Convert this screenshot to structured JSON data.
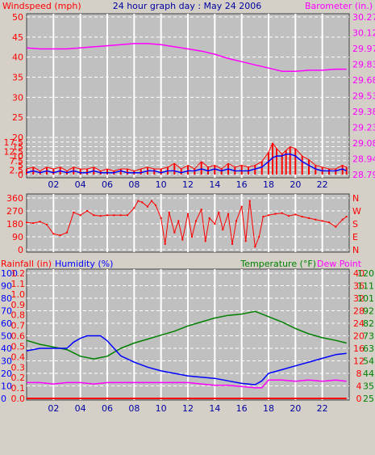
{
  "header": {
    "windspeed_label": "Windspeed (mph)",
    "title": "24 hour graph day : May 24 2006",
    "barometer_label": "Barometer (in.)"
  },
  "lower_header": {
    "rainfall_label": "Rainfall (in)",
    "humidity_label": "Humidity (%)",
    "temperature_label": "Temperature (°F)",
    "dewpoint_label": "Dew Point"
  },
  "colors": {
    "background": "#d4d0c8",
    "plot_bg": "#c0c0c0",
    "wind_gust": "#ff0000",
    "wind_avg": "#0000ff",
    "barometer": "#ff00ff",
    "direction": "#ff0000",
    "humidity": "#0000ff",
    "temperature": "#008000",
    "dewpoint": "#ff00ff",
    "rainfall": "#ff0000"
  },
  "chart_data": [
    {
      "type": "line",
      "name": "wind-barometer",
      "title": "24 hour graph day : May 24 2006",
      "xlabel": "",
      "ylabel": "Windspeed (mph)",
      "y2label": "Barometer (in.)",
      "x_ticks": [
        "02",
        "04",
        "06",
        "08",
        "10",
        "12",
        "14",
        "16",
        "18",
        "20",
        "22"
      ],
      "xlim": [
        0,
        24
      ],
      "ylim": [
        0,
        50
      ],
      "y_ticks": [
        "0",
        "2.5",
        "5",
        "7.5",
        "10",
        "12.5",
        "15",
        "17.5",
        "20",
        "25",
        "30",
        "35",
        "40",
        "45",
        "50"
      ],
      "y2_ticks": [
        "28.79",
        "28.94",
        "29.08",
        "29.23",
        "29.38",
        "29.53",
        "29.68",
        "29.83",
        "29.97",
        "30.12",
        "30.27"
      ],
      "y2lim": [
        28.79,
        30.27
      ],
      "grid": true,
      "series": [
        {
          "name": "Barometer",
          "axis": "right",
          "x": [
            0,
            1,
            2,
            3,
            4,
            5,
            6,
            7,
            8,
            9,
            10,
            11,
            12,
            13,
            14,
            15,
            16,
            17,
            18,
            19,
            20,
            21,
            22,
            23,
            23.8
          ],
          "values": [
            29.98,
            29.97,
            29.97,
            29.97,
            29.98,
            29.99,
            30.0,
            30.01,
            30.02,
            30.02,
            30.01,
            29.99,
            29.97,
            29.95,
            29.92,
            29.88,
            29.85,
            29.82,
            29.79,
            29.76,
            29.76,
            29.77,
            29.77,
            29.78,
            29.78
          ]
        },
        {
          "name": "Gust",
          "axis": "left",
          "x": [
            0,
            0.5,
            1,
            1.5,
            2,
            2.5,
            3,
            3.5,
            4,
            4.5,
            5,
            5.5,
            6,
            6.5,
            7,
            7.5,
            8,
            8.5,
            9,
            9.5,
            10,
            10.5,
            11,
            11.5,
            12,
            12.5,
            13,
            13.5,
            14,
            14.5,
            15,
            15.5,
            16,
            16.5,
            17,
            17.5,
            18,
            18.3,
            18.6,
            19,
            19.3,
            19.6,
            20,
            20.5,
            21,
            21.5,
            22,
            22.5,
            23,
            23.5,
            23.8
          ],
          "values": [
            3,
            4,
            2,
            4,
            3,
            4,
            2,
            4,
            3,
            3,
            4,
            2,
            3,
            2,
            3,
            3,
            2,
            3,
            4,
            3,
            3,
            4,
            6,
            3,
            5,
            3,
            7,
            4,
            5,
            3,
            6,
            4,
            5,
            4,
            5,
            7,
            12,
            17,
            14,
            11,
            13,
            15,
            14,
            10,
            8,
            5,
            4,
            3,
            3,
            5,
            4
          ]
        },
        {
          "name": "Average",
          "axis": "left",
          "x": [
            0,
            0.5,
            1,
            1.5,
            2,
            2.5,
            3,
            3.5,
            4,
            4.5,
            5,
            5.5,
            6,
            6.5,
            7,
            7.5,
            8,
            8.5,
            9,
            9.5,
            10,
            10.5,
            11,
            11.5,
            12,
            12.5,
            13,
            13.5,
            14,
            14.5,
            15,
            15.5,
            16,
            16.5,
            17,
            17.5,
            18,
            18.3,
            18.6,
            19,
            19.3,
            19.6,
            20,
            20.5,
            21,
            21.5,
            22,
            22.5,
            23,
            23.5,
            23.8
          ],
          "values": [
            1,
            2,
            1,
            2,
            1,
            2,
            1,
            2,
            1,
            1,
            2,
            1,
            1,
            1,
            2,
            1,
            1,
            1,
            2,
            2,
            1,
            2,
            2,
            1,
            2,
            2,
            3,
            2,
            3,
            2,
            3,
            2,
            2,
            2,
            3,
            4,
            7,
            9,
            10,
            10,
            11,
            11,
            10,
            7,
            5,
            3,
            2,
            2,
            2,
            3,
            2
          ]
        }
      ]
    },
    {
      "type": "scatter",
      "name": "wind-direction",
      "xlabel": "",
      "ylabel": "",
      "x_ticks": [
        "02",
        "04",
        "06",
        "08",
        "10",
        "12",
        "14",
        "16",
        "18",
        "20",
        "22"
      ],
      "xlim": [
        0,
        24
      ],
      "ylim": [
        0,
        360
      ],
      "y_ticks": [
        "0",
        "90",
        "180",
        "270",
        "360"
      ],
      "y2_ticks": [
        "N",
        "E",
        "S",
        "W",
        "N"
      ],
      "grid": true,
      "series": [
        {
          "name": "Direction",
          "x": [
            0,
            0.5,
            1,
            1.5,
            2,
            2.5,
            3,
            3.5,
            4,
            4.5,
            5,
            5.5,
            6,
            6.5,
            7,
            7.5,
            8,
            8.3,
            8.6,
            9,
            9.3,
            9.6,
            10,
            10.3,
            10.6,
            11,
            11.3,
            11.6,
            12,
            12.3,
            12.6,
            13,
            13.3,
            13.6,
            14,
            14.3,
            14.6,
            15,
            15.3,
            15.6,
            16,
            16.3,
            16.6,
            17,
            17.3,
            17.6,
            18,
            18.5,
            19,
            19.5,
            20,
            20.5,
            21,
            21.5,
            22,
            22.5,
            23,
            23.5,
            23.8
          ],
          "values": [
            190,
            185,
            195,
            175,
            110,
            100,
            120,
            260,
            240,
            270,
            240,
            235,
            240,
            240,
            240,
            240,
            290,
            340,
            330,
            300,
            340,
            310,
            220,
            40,
            260,
            120,
            200,
            70,
            250,
            90,
            200,
            280,
            60,
            220,
            180,
            260,
            140,
            250,
            40,
            200,
            300,
            60,
            340,
            20,
            90,
            230,
            240,
            250,
            255,
            235,
            245,
            230,
            220,
            210,
            200,
            190,
            160,
            210,
            230
          ]
        }
      ]
    },
    {
      "type": "line",
      "name": "humidity-temperature",
      "xlabel": "",
      "ylabel": "Rainfall (in)",
      "x_ticks": [
        "02",
        "04",
        "06",
        "08",
        "10",
        "12",
        "14",
        "16",
        "18",
        "20",
        "22"
      ],
      "xlim": [
        0,
        24
      ],
      "rainfall_ticks": [
        "0.0",
        "0.1",
        "0.2",
        "0.3",
        "0.4",
        "0.5",
        "0.6",
        "0.7",
        "0.8",
        "0.9",
        "1.0",
        "1.1",
        "1.2"
      ],
      "humidity_ticks": [
        "0",
        "10",
        "20",
        "30",
        "40",
        "50",
        "60",
        "70",
        "80",
        "90",
        "100"
      ],
      "dewpoint_ticks": [
        "0",
        "4",
        "8",
        "12",
        "16",
        "20",
        "24",
        "28",
        "32",
        "36",
        "40"
      ],
      "temperature_ticks": [
        "25",
        "35",
        "44",
        "54",
        "63",
        "73",
        "82",
        "92",
        "101",
        "111",
        "120"
      ],
      "humidity_lim": [
        0,
        100
      ],
      "temperature_lim": [
        25,
        120
      ],
      "grid": true,
      "series": [
        {
          "name": "Humidity",
          "axis": "humidity",
          "x": [
            0,
            1,
            2,
            3,
            3.5,
            4,
            4.5,
            5,
            5.5,
            6,
            6.5,
            7,
            8,
            9,
            10,
            11,
            12,
            13,
            14,
            15,
            16,
            17,
            17.5,
            18,
            19,
            20,
            21,
            22,
            23,
            23.8
          ],
          "values": [
            38,
            40,
            40,
            40,
            45,
            48,
            50,
            50,
            50,
            46,
            40,
            34,
            29,
            25,
            22,
            20,
            18,
            17,
            16,
            14,
            12,
            11,
            14,
            20,
            23,
            26,
            29,
            32,
            35,
            36
          ]
        },
        {
          "name": "Temperature",
          "axis": "temperature",
          "x": [
            0,
            1,
            2,
            3,
            4,
            5,
            6,
            7,
            8,
            9,
            10,
            11,
            12,
            13,
            14,
            15,
            16,
            17,
            18,
            19,
            20,
            21,
            22,
            23,
            23.8
          ],
          "values": [
            69,
            66,
            64,
            62,
            57,
            55,
            57,
            63,
            67,
            70,
            73,
            76,
            80,
            83,
            86,
            88,
            89,
            91,
            87,
            83,
            78,
            74,
            71,
            69,
            67
          ]
        },
        {
          "name": "Dew Point",
          "axis": "temperature",
          "x": [
            0,
            1,
            2,
            3,
            4,
            5,
            6,
            7,
            8,
            9,
            10,
            11,
            12,
            13,
            14,
            15,
            16,
            17,
            17.5,
            18,
            19,
            20,
            21,
            22,
            23,
            23.8
          ],
          "values": [
            37,
            37,
            36,
            37,
            37,
            36,
            37,
            37,
            37,
            37,
            37,
            37,
            37,
            36,
            35,
            35,
            34,
            33,
            33,
            39,
            39,
            38,
            39,
            38,
            39,
            38
          ]
        },
        {
          "name": "Rainfall",
          "axis": "rainfall",
          "x": [
            0,
            23.8
          ],
          "values": [
            0,
            0
          ]
        }
      ]
    }
  ]
}
